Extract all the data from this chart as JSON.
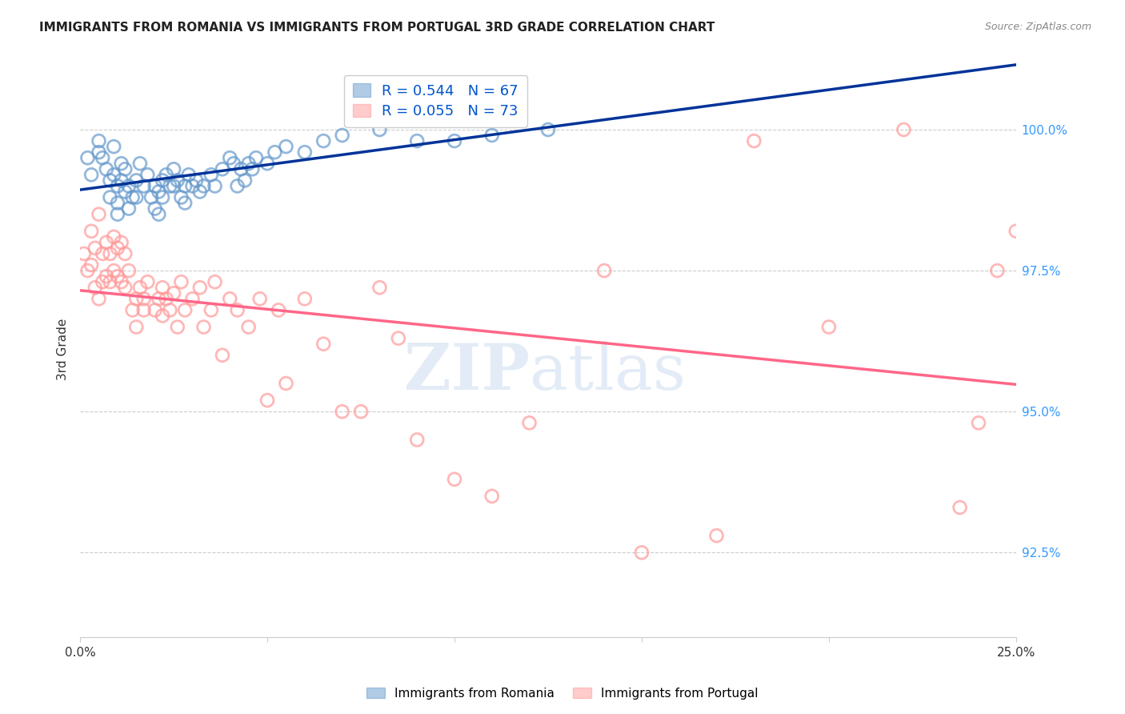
{
  "title": "IMMIGRANTS FROM ROMANIA VS IMMIGRANTS FROM PORTUGAL 3RD GRADE CORRELATION CHART",
  "source": "Source: ZipAtlas.com",
  "ylabel": "3rd Grade",
  "ylabel_ticks": [
    "92.5%",
    "95.0%",
    "97.5%",
    "100.0%"
  ],
  "ylabel_tick_vals": [
    92.5,
    95.0,
    97.5,
    100.0
  ],
  "xmin": 0.0,
  "xmax": 25.0,
  "ymin": 91.0,
  "ymax": 101.2,
  "romania_color": "#6699CC",
  "portugal_color": "#FF9999",
  "romania_line_color": "#003399",
  "portugal_line_color": "#FF6688",
  "romania_R": 0.544,
  "romania_N": 67,
  "portugal_R": 0.055,
  "portugal_N": 73,
  "background_color": "#FFFFFF",
  "romania_scatter_x": [
    0.2,
    0.3,
    0.5,
    0.5,
    0.6,
    0.7,
    0.8,
    0.8,
    0.9,
    0.9,
    1.0,
    1.0,
    1.0,
    1.1,
    1.1,
    1.2,
    1.2,
    1.3,
    1.3,
    1.4,
    1.5,
    1.5,
    1.6,
    1.7,
    1.8,
    1.9,
    2.0,
    2.0,
    2.1,
    2.1,
    2.2,
    2.2,
    2.3,
    2.4,
    2.5,
    2.5,
    2.6,
    2.7,
    2.8,
    2.8,
    2.9,
    3.0,
    3.1,
    3.2,
    3.3,
    3.5,
    3.6,
    3.8,
    4.0,
    4.1,
    4.2,
    4.3,
    4.4,
    4.5,
    4.6,
    4.7,
    5.0,
    5.2,
    5.5,
    6.0,
    6.5,
    7.0,
    8.0,
    9.0,
    10.0,
    11.0,
    12.5
  ],
  "romania_scatter_y": [
    99.5,
    99.2,
    99.8,
    99.6,
    99.5,
    99.3,
    99.1,
    98.8,
    99.7,
    99.2,
    99.0,
    98.7,
    98.5,
    99.4,
    99.1,
    99.3,
    98.9,
    99.0,
    98.6,
    98.8,
    99.1,
    98.8,
    99.4,
    99.0,
    99.2,
    98.8,
    99.0,
    98.6,
    98.9,
    98.5,
    99.1,
    98.8,
    99.2,
    99.0,
    99.3,
    99.0,
    99.1,
    98.8,
    99.0,
    98.7,
    99.2,
    99.0,
    99.1,
    98.9,
    99.0,
    99.2,
    99.0,
    99.3,
    99.5,
    99.4,
    99.0,
    99.3,
    99.1,
    99.4,
    99.3,
    99.5,
    99.4,
    99.6,
    99.7,
    99.6,
    99.8,
    99.9,
    100.0,
    99.8,
    99.8,
    99.9,
    100.0
  ],
  "portugal_scatter_x": [
    0.1,
    0.2,
    0.3,
    0.3,
    0.4,
    0.4,
    0.5,
    0.5,
    0.6,
    0.6,
    0.7,
    0.7,
    0.8,
    0.8,
    0.9,
    0.9,
    1.0,
    1.0,
    1.1,
    1.1,
    1.2,
    1.2,
    1.3,
    1.4,
    1.5,
    1.5,
    1.6,
    1.7,
    1.7,
    1.8,
    2.0,
    2.1,
    2.2,
    2.2,
    2.3,
    2.4,
    2.5,
    2.6,
    2.7,
    2.8,
    3.0,
    3.2,
    3.3,
    3.5,
    3.6,
    3.8,
    4.0,
    4.2,
    4.5,
    4.8,
    5.0,
    5.3,
    5.5,
    6.0,
    6.5,
    7.0,
    7.5,
    8.0,
    8.5,
    9.0,
    10.0,
    11.0,
    12.0,
    14.0,
    15.0,
    17.0,
    18.0,
    20.0,
    22.0,
    23.5,
    24.0,
    24.5,
    25.0
  ],
  "portugal_scatter_y": [
    97.8,
    97.5,
    98.2,
    97.6,
    97.9,
    97.2,
    98.5,
    97.0,
    97.8,
    97.3,
    98.0,
    97.4,
    97.8,
    97.3,
    98.1,
    97.5,
    97.9,
    97.4,
    98.0,
    97.3,
    97.8,
    97.2,
    97.5,
    96.8,
    97.0,
    96.5,
    97.2,
    97.0,
    96.8,
    97.3,
    96.8,
    97.0,
    97.2,
    96.7,
    97.0,
    96.8,
    97.1,
    96.5,
    97.3,
    96.8,
    97.0,
    97.2,
    96.5,
    96.8,
    97.3,
    96.0,
    97.0,
    96.8,
    96.5,
    97.0,
    95.2,
    96.8,
    95.5,
    97.0,
    96.2,
    95.0,
    95.0,
    97.2,
    96.3,
    94.5,
    93.8,
    93.5,
    94.8,
    97.5,
    92.5,
    92.8,
    99.8,
    96.5,
    100.0,
    93.3,
    94.8,
    97.5,
    98.2
  ]
}
